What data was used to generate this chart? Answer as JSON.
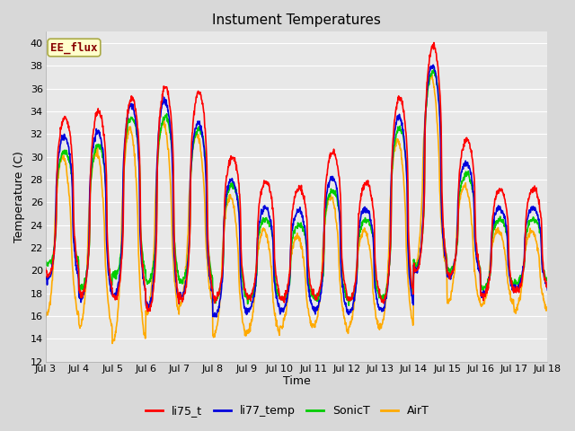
{
  "title": "Instument Temperatures",
  "ylabel": "Temperature (C)",
  "xlabel": "Time",
  "ylim": [
    12,
    41
  ],
  "yticks": [
    12,
    14,
    16,
    18,
    20,
    22,
    24,
    26,
    28,
    30,
    32,
    34,
    36,
    38,
    40
  ],
  "xtick_labels": [
    "Jul 3",
    "Jul 4",
    "Jul 5",
    "Jul 6",
    "Jul 7",
    "Jul 8",
    "Jul 9",
    "Jul 10",
    "Jul 11",
    "Jul 12",
    "Jul 13",
    "Jul 14",
    "Jul 15",
    "Jul 16",
    "Jul 17",
    "Jul 18"
  ],
  "n_days": 15,
  "series": {
    "li75_t": {
      "color": "#ff0000",
      "lw": 1.2
    },
    "li77_temp": {
      "color": "#0000dd",
      "lw": 1.2
    },
    "SonicT": {
      "color": "#00cc00",
      "lw": 1.2
    },
    "AirT": {
      "color": "#ffaa00",
      "lw": 1.2
    }
  },
  "legend_label": "EE_flux",
  "legend_bg": "#ffffcc",
  "legend_border": "#aaaa44",
  "legend_text_color": "#880000",
  "outer_bg": "#d8d8d8",
  "plot_bg": "#e8e8e8",
  "grid_color": "#ffffff",
  "title_fontsize": 11,
  "axis_fontsize": 9,
  "tick_fontsize": 8,
  "day_peaks_li75": [
    33.5,
    34.0,
    35.2,
    36.2,
    35.7,
    30.0,
    27.8,
    27.3,
    30.4,
    27.7,
    35.2,
    39.7,
    31.5,
    27.2,
    27.2
  ],
  "day_troughs_li75": [
    19.5,
    17.8,
    17.5,
    16.5,
    17.5,
    17.5,
    17.7,
    17.5,
    17.7,
    17.5,
    17.2,
    20.0,
    19.5,
    17.8,
    18.2
  ],
  "day_peaks_li77": [
    31.8,
    32.2,
    34.5,
    35.0,
    33.0,
    28.0,
    25.5,
    25.3,
    28.2,
    25.5,
    33.5,
    38.0,
    29.5,
    25.5,
    25.5
  ],
  "day_troughs_li77": [
    19.2,
    17.5,
    17.8,
    16.8,
    17.8,
    16.0,
    16.5,
    16.5,
    16.5,
    16.3,
    16.5,
    20.0,
    19.5,
    18.0,
    18.5
  ],
  "day_peaks_sonic": [
    30.5,
    31.0,
    33.5,
    33.5,
    32.5,
    27.5,
    24.5,
    24.0,
    27.0,
    24.5,
    32.5,
    37.5,
    28.5,
    24.5,
    24.5
  ],
  "day_troughs_sonic": [
    20.5,
    18.5,
    19.5,
    19.0,
    19.0,
    17.5,
    17.5,
    17.5,
    17.5,
    17.5,
    17.5,
    20.5,
    20.0,
    18.5,
    19.0
  ],
  "day_peaks_air": [
    30.0,
    30.5,
    32.5,
    33.0,
    32.0,
    26.5,
    23.5,
    23.0,
    26.5,
    23.5,
    31.5,
    37.0,
    27.5,
    23.5,
    23.5
  ],
  "day_troughs_air": [
    16.0,
    15.0,
    13.8,
    16.2,
    17.2,
    14.2,
    14.5,
    15.0,
    15.2,
    14.8,
    15.2,
    20.0,
    17.2,
    17.0,
    16.5
  ],
  "peak_hour": 14.0,
  "pts_per_day": 96
}
